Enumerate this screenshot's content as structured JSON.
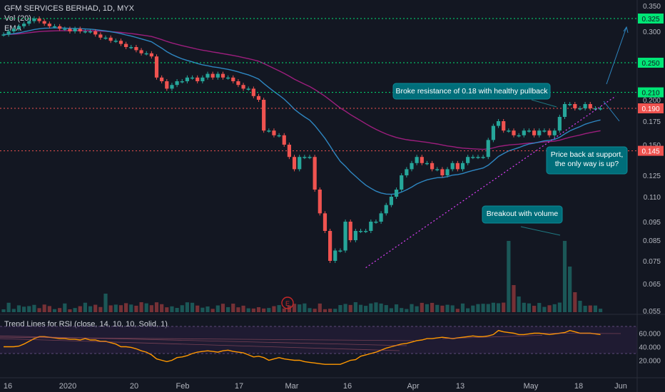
{
  "chart_title": "GFM SERVICES BERHAD, 1D, MYX",
  "legend": [
    "Vol (20)",
    "EMA"
  ],
  "rsi_title": "Trend Lines for RSI (close, 14, 10, 10, Solid, 1)",
  "colors": {
    "up": "#26a69a",
    "down": "#ef5350",
    "ema_fast": "#2e86c1",
    "ema_slow": "#9c1e7d",
    "rsi": "#ff9800",
    "level_green": "#00e676",
    "level_red": "#ef5350",
    "annotation": "#006e7a"
  },
  "chart_data": [
    {
      "type": "candlestick",
      "title": "GFM SERVICES BERHAD, 1D, MYX",
      "ylim": [
        0.055,
        0.35
      ],
      "y_ticks": [
        "0.350",
        "0.300",
        "0.250",
        "0.200",
        "0.175",
        "0.150",
        "0.125",
        "0.110",
        "0.095",
        "0.085",
        "0.075",
        "0.065",
        "0.055"
      ],
      "x_ticks": [
        "16",
        "2020",
        "20",
        "Feb",
        "17",
        "Mar",
        "16",
        "Apr",
        "13",
        "May",
        "18",
        "Jun"
      ],
      "close": [
        0.295,
        0.3,
        0.305,
        0.31,
        0.315,
        0.32,
        0.325,
        0.32,
        0.315,
        0.31,
        0.31,
        0.305,
        0.305,
        0.3,
        0.305,
        0.3,
        0.3,
        0.3,
        0.295,
        0.29,
        0.29,
        0.285,
        0.285,
        0.28,
        0.275,
        0.275,
        0.27,
        0.265,
        0.265,
        0.26,
        0.23,
        0.225,
        0.215,
        0.22,
        0.225,
        0.225,
        0.23,
        0.23,
        0.225,
        0.23,
        0.235,
        0.23,
        0.235,
        0.23,
        0.23,
        0.225,
        0.22,
        0.215,
        0.215,
        0.205,
        0.2,
        0.165,
        0.165,
        0.16,
        0.16,
        0.15,
        0.14,
        0.13,
        0.14,
        0.14,
        0.14,
        0.115,
        0.1,
        0.09,
        0.075,
        0.08,
        0.08,
        0.095,
        0.085,
        0.09,
        0.09,
        0.09,
        0.095,
        0.095,
        0.1,
        0.105,
        0.11,
        0.115,
        0.125,
        0.13,
        0.135,
        0.14,
        0.135,
        0.135,
        0.13,
        0.13,
        0.125,
        0.13,
        0.135,
        0.13,
        0.135,
        0.14,
        0.14,
        0.14,
        0.14,
        0.155,
        0.17,
        0.175,
        0.165,
        0.165,
        0.16,
        0.16,
        0.165,
        0.165,
        0.16,
        0.165,
        0.165,
        0.16,
        0.165,
        0.18,
        0.195,
        0.195,
        0.19,
        0.19,
        0.195,
        0.19,
        0.19,
        0.19
      ],
      "levels": [
        {
          "label": "0.325",
          "value": 0.325,
          "style": "green"
        },
        {
          "label": "0.250",
          "value": 0.25,
          "style": "green"
        },
        {
          "label": "0.210",
          "value": 0.21,
          "style": "green"
        },
        {
          "label": "0.190",
          "value": 0.19,
          "style": "red"
        },
        {
          "label": "0.145",
          "value": 0.145,
          "style": "red"
        }
      ],
      "annotations": [
        "Broke resistance of 0.18 with healthy pullback",
        "Price back at support, the only way is up?",
        "Breakout with volume"
      ]
    },
    {
      "type": "line",
      "title": "Trend Lines for RSI (close, 14, 10, 10, Solid, 1)",
      "ylim": [
        10,
        70
      ],
      "y_ticks": [
        "60.000",
        "40.000",
        "20.000"
      ],
      "values": [
        40,
        40,
        40,
        41,
        44,
        48,
        52,
        55,
        55,
        54,
        53,
        52,
        52,
        51,
        51,
        50,
        52,
        50,
        50,
        48,
        48,
        46,
        44,
        40,
        40,
        39,
        37,
        34,
        32,
        28,
        22,
        20,
        18,
        20,
        24,
        25,
        27,
        30,
        32,
        33,
        34,
        33,
        32,
        34,
        35,
        33,
        32,
        31,
        28,
        25,
        26,
        24,
        20,
        22,
        24,
        22,
        21,
        20,
        20,
        18,
        17,
        16,
        15,
        14,
        14,
        14,
        14,
        17,
        20,
        21,
        26,
        28,
        30,
        32,
        35,
        38,
        40,
        42,
        44,
        45,
        47,
        49,
        50,
        52,
        52,
        53,
        54,
        53,
        52,
        53,
        54,
        55,
        56,
        55,
        55,
        56,
        58,
        64,
        62,
        61,
        60,
        58,
        58,
        59,
        60,
        60,
        59,
        58,
        59,
        60,
        61,
        64,
        62,
        60,
        60,
        60,
        59,
        58
      ]
    }
  ]
}
